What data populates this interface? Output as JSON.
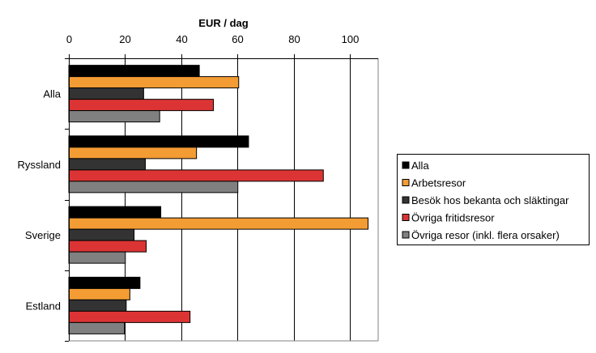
{
  "chart_data": {
    "type": "bar",
    "orientation": "horizontal",
    "title": "EUR / dag",
    "xlabel": "EUR / dag",
    "ylabel": "",
    "xlim": [
      0,
      110
    ],
    "x_ticks": [
      0,
      20,
      40,
      60,
      80,
      100
    ],
    "x_tick_labels": [
      "0",
      "20",
      "40",
      "60",
      "80",
      "100"
    ],
    "x_axis_position": "top",
    "grid": true,
    "legend_position": "right",
    "categories": [
      "Alla",
      "Ryssland",
      "Sverige",
      "Estland"
    ],
    "series": [
      {
        "name": "Alla",
        "color": "#000000",
        "values": [
          46.4,
          63.9,
          32.7,
          25.3
        ]
      },
      {
        "name": "Arbetsresor",
        "color": "#F39C34",
        "values": [
          60.4,
          45.4,
          106.4,
          21.7
        ]
      },
      {
        "name": "Besök hos bekanta och släktingar",
        "color": "#333333",
        "values": [
          26.6,
          27.2,
          23.2,
          20.4
        ]
      },
      {
        "name": "Övriga fritidsresor",
        "color": "#DC3434",
        "values": [
          51.4,
          90.5,
          27.5,
          43.1
        ]
      },
      {
        "name": "Övriga resor (inkl. flera orsaker)",
        "color": "#808080",
        "values": [
          32.3,
          60.1,
          20.1,
          19.8
        ]
      }
    ]
  }
}
